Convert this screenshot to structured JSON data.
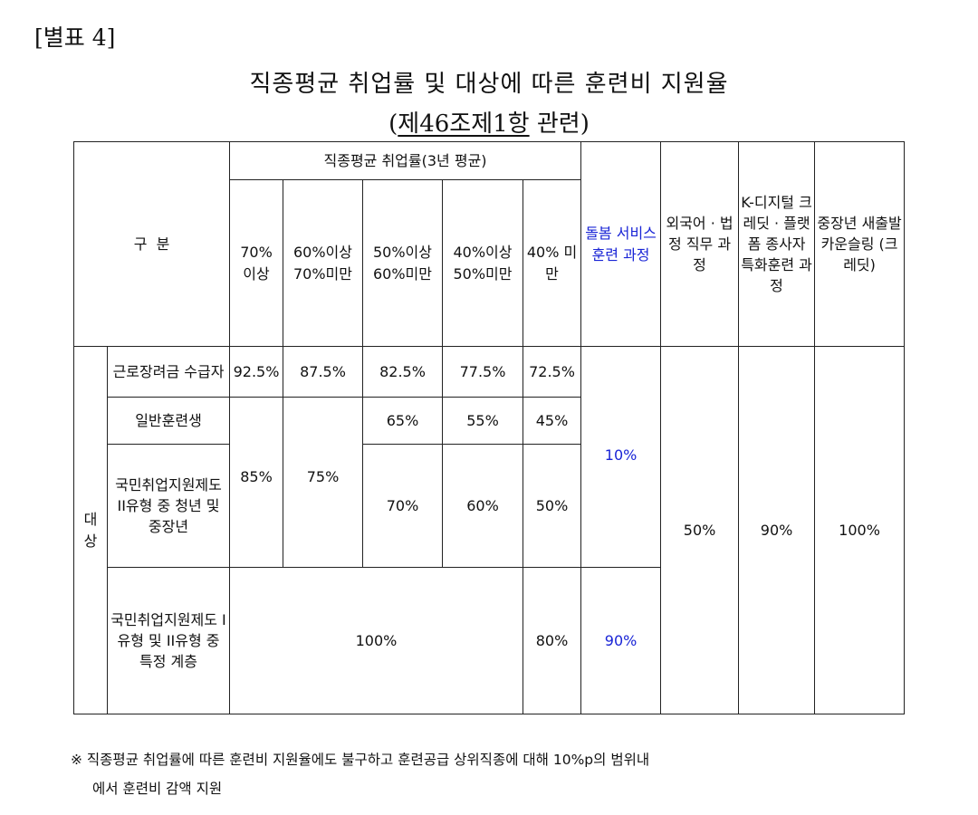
{
  "annex_label": "[별표 4]",
  "title": "직종평균 취업률 및 대상에 따른 훈련비 지원율",
  "subtitle": {
    "open": "(",
    "ref": "제46조제1항",
    "rest": " 관련)"
  },
  "table": {
    "header": {
      "division": "구  분",
      "employment_group": "직종평균 취업률(3년 평균)",
      "rate_columns": [
        "70% 이상",
        "60%이상 70%미만",
        "50%이상 60%미만",
        "40%이상 50%미만",
        "40% 미만"
      ],
      "care": "돌봄 서비스 훈련 과정",
      "foreign": "외국어 · 법정 직무 과정",
      "kdigital": "K-디지털 크레딧 · 플랫폼 종사자 특화훈련 과정",
      "midcareer": "중장년 새출발 카운슬링 (크레딧)"
    },
    "target_label": "대상",
    "rows": {
      "r1": {
        "label": "근로장려금 수급자",
        "c70": "92.5%",
        "c60": "87.5%",
        "c50": "82.5%",
        "c40": "77.5%",
        "cunder": "72.5%"
      },
      "r2": {
        "label": "일반훈련생",
        "c50": "65%",
        "c40": "55%",
        "cunder": "45%"
      },
      "r2r3": {
        "c70": "85%",
        "c60": "75%"
      },
      "r3": {
        "label": "국민취업지원제도 II유형 중 청년 및 중장년",
        "c50": "70%",
        "c40": "60%",
        "cunder": "50%"
      },
      "r4": {
        "label": "국민취업지원제도 I유형 및 II유형 중 특정 계층",
        "c70_40": "100%",
        "cunder": "80%"
      }
    },
    "care_upper": "10%",
    "care_lower": "90%",
    "foreign_all": "50%",
    "kdigital_all": "90%",
    "midcareer_all": "100%"
  },
  "footnote": {
    "line1": "※ 직종평균 취업률에 따른 훈련비 지원율에도 불구하고 훈련공급 상위직종에 대해 10%p의 범위내",
    "line2": "에서 훈련비 감액 지원"
  }
}
